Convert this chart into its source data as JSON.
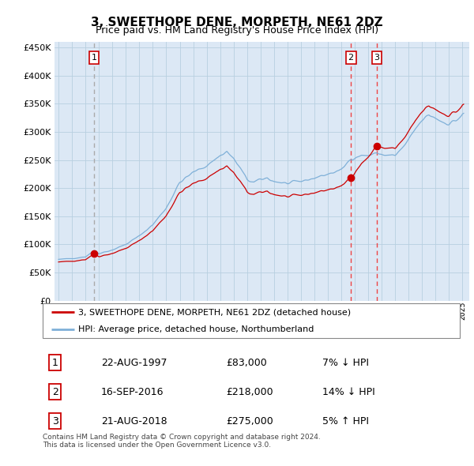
{
  "title": "3, SWEETHOPE DENE, MORPETH, NE61 2DZ",
  "subtitle": "Price paid vs. HM Land Registry's House Price Index (HPI)",
  "legend_house": "3, SWEETHOPE DENE, MORPETH, NE61 2DZ (detached house)",
  "legend_hpi": "HPI: Average price, detached house, Northumberland",
  "footnote": "Contains HM Land Registry data © Crown copyright and database right 2024.\nThis data is licensed under the Open Government Licence v3.0.",
  "transactions": [
    {
      "num": 1,
      "date": "22-AUG-1997",
      "price": 83000,
      "pct": "7%",
      "dir": "↓",
      "year": 1997.64,
      "ratio": 0.93
    },
    {
      "num": 2,
      "date": "16-SEP-2016",
      "price": 218000,
      "pct": "14%",
      "dir": "↓",
      "year": 2016.71,
      "ratio": 0.86
    },
    {
      "num": 3,
      "date": "21-AUG-2018",
      "price": 275000,
      "pct": "5%",
      "dir": "↑",
      "year": 2018.64,
      "ratio": 1.05
    }
  ],
  "ylim": [
    0,
    460000
  ],
  "yticks": [
    0,
    50000,
    100000,
    150000,
    200000,
    250000,
    300000,
    350000,
    400000,
    450000
  ],
  "xlim_start": 1994.7,
  "xlim_end": 2025.5,
  "background_color": "#ffffff",
  "plot_bg_color": "#dce8f5",
  "grid_color": "#b8cfe0",
  "house_line_color": "#cc0000",
  "hpi_line_color": "#7fb0d8",
  "dashed_line_color_1": "#aaaaaa",
  "dashed_line_color_23": "#ee4444",
  "marker_color": "#cc0000"
}
